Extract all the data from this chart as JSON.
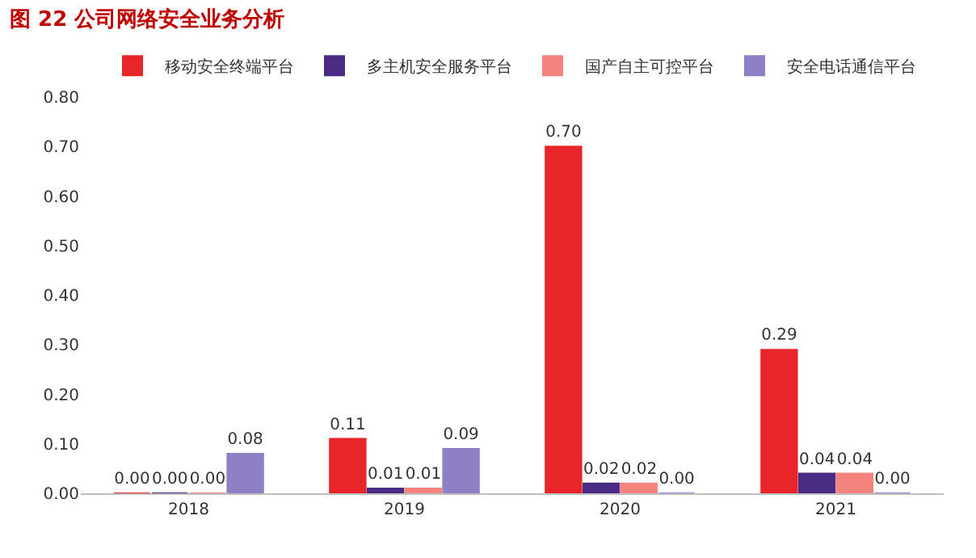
{
  "chart_data": {
    "type": "bar",
    "title": "图 22 公司网络安全业务分析",
    "categories": [
      "2018",
      "2019",
      "2020",
      "2021"
    ],
    "series": [
      {
        "name": "移动安全终端平台",
        "color": "#e8262a",
        "values": [
          0.0,
          0.11,
          0.7,
          0.29
        ],
        "value_labels": [
          "0.00",
          "0.11",
          "0.70",
          "0.29"
        ]
      },
      {
        "name": "多主机安全服务平台",
        "color": "#4b2c85",
        "values": [
          0.0,
          0.01,
          0.02,
          0.04
        ],
        "value_labels": [
          "0.00",
          "0.01",
          "0.02",
          "0.04"
        ]
      },
      {
        "name": "国产自主可控平台",
        "color": "#f4837d",
        "values": [
          0.0,
          0.01,
          0.02,
          0.04
        ],
        "value_labels": [
          "0.00",
          "0.01",
          "0.02",
          "0.04"
        ]
      },
      {
        "name": "安全电话通信平台",
        "color": "#8f7fc4",
        "values": [
          0.08,
          0.09,
          0.0,
          0.0
        ],
        "value_labels": [
          "0.08",
          "0.09",
          "0.00",
          "0.00"
        ]
      }
    ],
    "ylim": [
      0,
      0.8
    ],
    "yticks": [
      {
        "value": 0,
        "label": "0.00"
      },
      {
        "value": 0.1,
        "label": "0.10"
      },
      {
        "value": 0.2,
        "label": "0.20"
      },
      {
        "value": 0.3,
        "label": "0.30"
      },
      {
        "value": 0.4,
        "label": "0.40"
      },
      {
        "value": 0.5,
        "label": "0.50"
      },
      {
        "value": 0.6,
        "label": "0.60"
      },
      {
        "value": 0.7,
        "label": "0.70"
      },
      {
        "value": 0.8,
        "label": "0.80"
      }
    ],
    "legend": "top"
  }
}
